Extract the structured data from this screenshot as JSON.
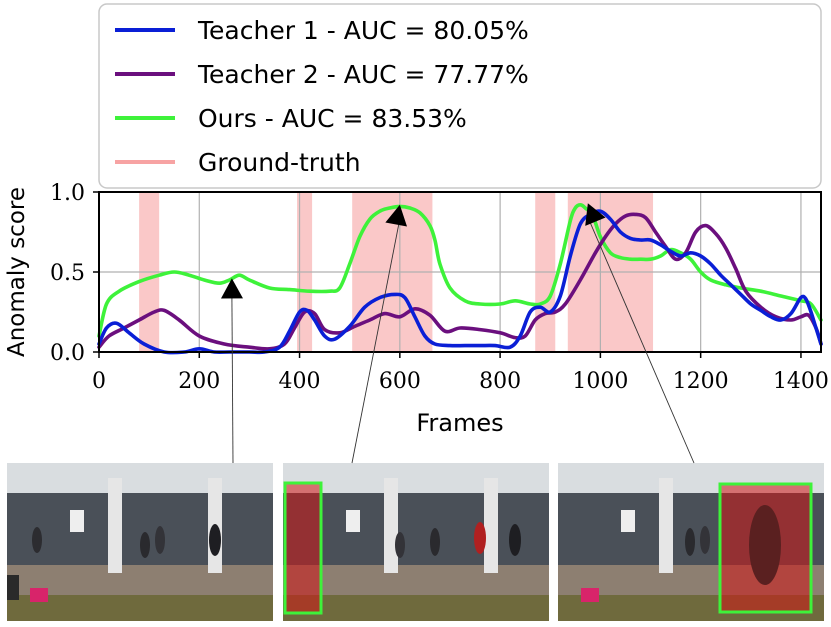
{
  "chart_data": {
    "type": "line",
    "xlabel": "Frames",
    "ylabel": "Anomaly score",
    "xlim": [
      0,
      1440
    ],
    "ylim": [
      0,
      1.0
    ],
    "xticks": [
      0,
      200,
      400,
      600,
      800,
      1000,
      1200,
      1400
    ],
    "yticks": [
      0.0,
      0.5,
      1.0
    ],
    "xtick_labels": [
      "0",
      "200",
      "400",
      "600",
      "800",
      "1000",
      "1200",
      "1400"
    ],
    "ytick_labels": [
      "0.0",
      "0.5",
      "1.0"
    ],
    "grid": true,
    "legend_position": "top-left, above the plot",
    "ground_truth": {
      "name": "Ground-truth",
      "color": "#f7a3a3",
      "intervals": [
        [
          80,
          120
        ],
        [
          395,
          425
        ],
        [
          505,
          665
        ],
        [
          870,
          910
        ],
        [
          935,
          1105
        ]
      ]
    },
    "series": [
      {
        "name": "Teacher 1 - AUC = 80.05%",
        "color": "#0a1fd6",
        "x": [
          0,
          15,
          35,
          60,
          90,
          130,
          170,
          200,
          230,
          260,
          300,
          330,
          360,
          380,
          400,
          415,
          430,
          450,
          470,
          500,
          530,
          560,
          590,
          610,
          630,
          650,
          670,
          700,
          730,
          760,
          790,
          820,
          840,
          860,
          880,
          900,
          920,
          940,
          960,
          980,
          1000,
          1020,
          1040,
          1060,
          1080,
          1100,
          1120,
          1140,
          1160,
          1180,
          1200,
          1220,
          1240,
          1260,
          1280,
          1300,
          1320,
          1340,
          1360,
          1380,
          1400,
          1410,
          1420,
          1430,
          1440
        ],
        "y": [
          0.05,
          0.15,
          0.18,
          0.12,
          0.05,
          0.0,
          0.0,
          0.02,
          0.0,
          0.0,
          0.0,
          0.0,
          0.03,
          0.13,
          0.25,
          0.26,
          0.2,
          0.1,
          0.08,
          0.16,
          0.28,
          0.34,
          0.36,
          0.34,
          0.22,
          0.1,
          0.05,
          0.04,
          0.04,
          0.04,
          0.04,
          0.03,
          0.1,
          0.25,
          0.28,
          0.25,
          0.35,
          0.6,
          0.8,
          0.86,
          0.88,
          0.83,
          0.75,
          0.71,
          0.7,
          0.7,
          0.67,
          0.63,
          0.6,
          0.62,
          0.6,
          0.55,
          0.48,
          0.42,
          0.36,
          0.3,
          0.26,
          0.22,
          0.2,
          0.24,
          0.34,
          0.33,
          0.25,
          0.15,
          0.05
        ]
      },
      {
        "name": "Teacher 2 - AUC = 77.77%",
        "color": "#6b0f7e",
        "x": [
          0,
          20,
          50,
          80,
          110,
          130,
          160,
          200,
          250,
          300,
          340,
          370,
          390,
          410,
          430,
          450,
          480,
          510,
          540,
          570,
          600,
          630,
          660,
          690,
          720,
          760,
          800,
          830,
          850,
          870,
          890,
          910,
          930,
          960,
          990,
          1010,
          1030,
          1050,
          1070,
          1090,
          1110,
          1130,
          1150,
          1170,
          1190,
          1210,
          1230,
          1250,
          1270,
          1290,
          1320,
          1350,
          1380,
          1400,
          1415,
          1430,
          1440
        ],
        "y": [
          0.03,
          0.1,
          0.15,
          0.2,
          0.25,
          0.26,
          0.2,
          0.1,
          0.05,
          0.03,
          0.02,
          0.05,
          0.15,
          0.25,
          0.24,
          0.14,
          0.12,
          0.16,
          0.2,
          0.24,
          0.22,
          0.27,
          0.23,
          0.13,
          0.15,
          0.14,
          0.12,
          0.09,
          0.1,
          0.2,
          0.24,
          0.25,
          0.3,
          0.45,
          0.62,
          0.72,
          0.8,
          0.85,
          0.86,
          0.84,
          0.75,
          0.66,
          0.58,
          0.62,
          0.75,
          0.79,
          0.74,
          0.65,
          0.52,
          0.38,
          0.28,
          0.22,
          0.2,
          0.22,
          0.23,
          0.15,
          0.05
        ]
      },
      {
        "name": "Ours - AUC = 83.53%",
        "color": "#3ef23a",
        "x": [
          0,
          15,
          40,
          80,
          120,
          150,
          180,
          210,
          240,
          260,
          280,
          300,
          340,
          380,
          420,
          460,
          480,
          500,
          520,
          540,
          560,
          580,
          600,
          620,
          640,
          660,
          670,
          680,
          700,
          730,
          760,
          800,
          830,
          860,
          880,
          900,
          920,
          940,
          950,
          960,
          970,
          985,
          1000,
          1020,
          1040,
          1060,
          1080,
          1100,
          1120,
          1140,
          1160,
          1180,
          1200,
          1220,
          1250,
          1280,
          1320,
          1360,
          1400,
          1420,
          1440
        ],
        "y": [
          0.1,
          0.3,
          0.38,
          0.44,
          0.48,
          0.5,
          0.48,
          0.45,
          0.43,
          0.45,
          0.48,
          0.45,
          0.4,
          0.39,
          0.38,
          0.38,
          0.4,
          0.55,
          0.72,
          0.83,
          0.88,
          0.9,
          0.91,
          0.9,
          0.87,
          0.79,
          0.7,
          0.55,
          0.4,
          0.32,
          0.3,
          0.3,
          0.32,
          0.3,
          0.3,
          0.35,
          0.55,
          0.82,
          0.9,
          0.92,
          0.9,
          0.85,
          0.72,
          0.62,
          0.59,
          0.58,
          0.58,
          0.58,
          0.6,
          0.64,
          0.62,
          0.58,
          0.5,
          0.45,
          0.42,
          0.4,
          0.38,
          0.35,
          0.32,
          0.3,
          0.2
        ]
      }
    ],
    "annotations": [
      {
        "type": "arrow",
        "from_frame": 265,
        "to_frame": 265,
        "to_score": 0.46,
        "target": "frame-panel-1"
      },
      {
        "type": "arrow",
        "from_frame": 600,
        "to_frame": 600,
        "to_score": 0.92,
        "target": "frame-panel-2"
      },
      {
        "type": "arrow",
        "from_frame": 975,
        "to_frame": 975,
        "to_score": 0.93,
        "target": "frame-panel-3"
      }
    ]
  },
  "frames": [
    {
      "name": "frame-panel-1",
      "highlight_color": "#3ef23a",
      "has_detection": false
    },
    {
      "name": "frame-panel-2",
      "highlight_color": "#3ef23a",
      "has_detection": true
    },
    {
      "name": "frame-panel-3",
      "highlight_color": "#3ef23a",
      "has_detection": true
    }
  ]
}
